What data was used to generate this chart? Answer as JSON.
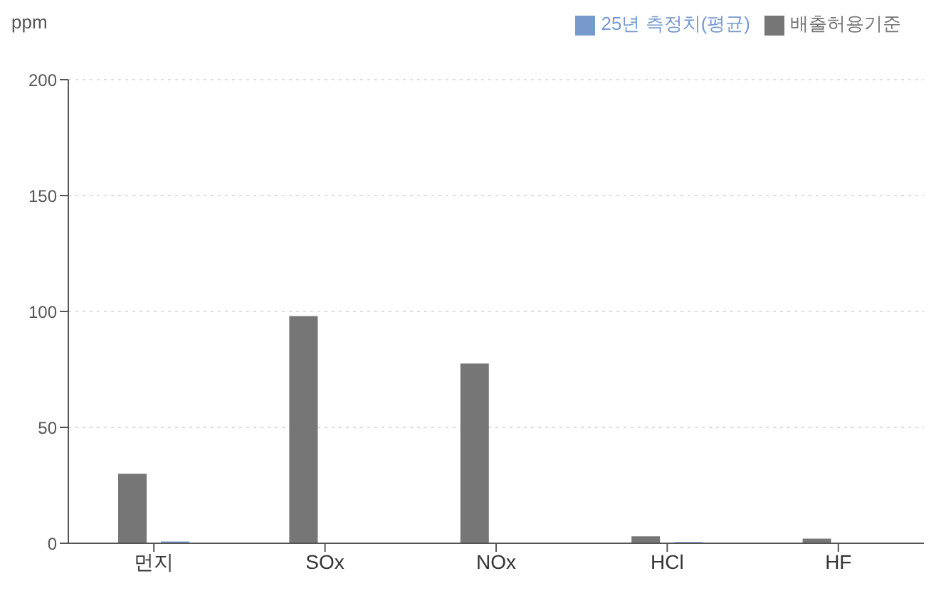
{
  "chart_data": {
    "type": "bar",
    "ylabel": "ppm",
    "categories": [
      "먼지",
      "SOx",
      "NOx",
      "HCl",
      "HF"
    ],
    "series": [
      {
        "name": "배출허용기준",
        "color": "#767676",
        "values": [
          30,
          98,
          77.5,
          3,
          2
        ]
      },
      {
        "name": "25년 측정치(평균)",
        "color": "#7799cc",
        "values": [
          0.8,
          0,
          0,
          0.5,
          0
        ]
      }
    ],
    "ylim": [
      0,
      200
    ],
    "yticks": [
      0,
      50,
      100,
      150,
      200
    ],
    "grid": "y",
    "legend": "top right"
  }
}
